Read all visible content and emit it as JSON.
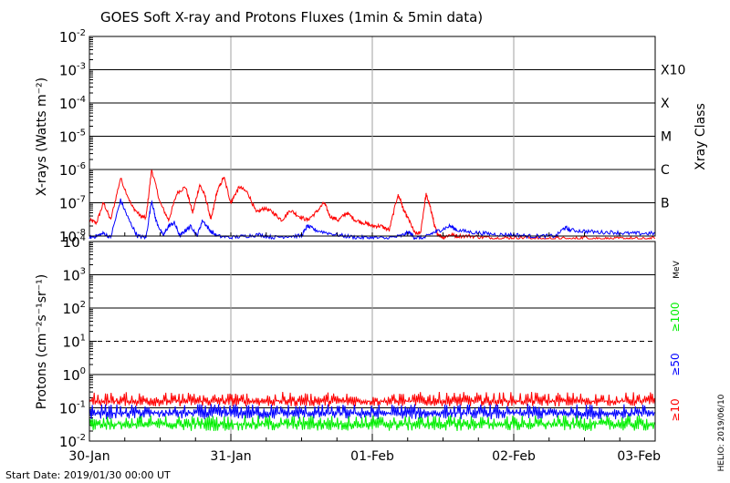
{
  "title": "GOES Soft X-ray and Protons Fluxes   (1min & 5min data)",
  "start_date": "Start Date: 2019/01/30 00:00 UT",
  "helio_stamp": "HELIO: 2019/06/10",
  "colors": {
    "red": "#ff0000",
    "blue": "#0000ff",
    "green": "#00ee00",
    "grid": "#a0a0a0",
    "axis": "#000000"
  },
  "chart_data": [
    {
      "type": "line",
      "panel": "xray",
      "ylabel": "X-rays (Watts m⁻²)",
      "y_scale": "log",
      "ylim": [
        1e-08,
        0.01
      ],
      "y_ticks": [
        {
          "base": "10",
          "exp": "-8"
        },
        {
          "base": "10",
          "exp": "-7"
        },
        {
          "base": "10",
          "exp": "-6"
        },
        {
          "base": "10",
          "exp": "-5"
        },
        {
          "base": "10",
          "exp": "-4"
        },
        {
          "base": "10",
          "exp": "-3"
        },
        {
          "base": "10",
          "exp": "-2"
        }
      ],
      "right_axis_label": "Xray Class",
      "right_ticks": [
        {
          "label": "B",
          "exp": -7
        },
        {
          "label": "C",
          "exp": -6
        },
        {
          "label": "M",
          "exp": -5
        },
        {
          "label": "X",
          "exp": -4
        },
        {
          "label": "X10",
          "exp": -3
        }
      ],
      "x_ticks": [
        "30-Jan",
        "31-Jan",
        "01-Feb",
        "02-Feb",
        "03-Feb"
      ],
      "xlim_days": [
        0,
        4
      ],
      "grid": true,
      "series": [
        {
          "color": "#ff0000",
          "x": [
            0.0,
            0.05,
            0.1,
            0.15,
            0.22,
            0.3,
            0.36,
            0.4,
            0.44,
            0.5,
            0.56,
            0.62,
            0.68,
            0.73,
            0.78,
            0.82,
            0.86,
            0.9,
            0.95,
            1.0,
            1.02,
            1.06,
            1.12,
            1.18,
            1.24,
            1.3,
            1.36,
            1.42,
            1.48,
            1.54,
            1.6,
            1.66,
            1.7,
            1.76,
            1.82,
            1.88,
            1.94,
            2.0,
            2.06,
            2.12,
            2.18,
            2.2,
            2.22,
            2.26,
            2.3,
            2.34,
            2.38,
            2.4,
            2.42,
            2.44,
            2.46,
            2.5,
            2.55,
            2.6,
            2.7,
            2.8,
            2.9,
            3.0,
            3.1,
            3.2,
            3.3,
            3.4,
            3.5,
            3.6,
            3.7,
            3.8,
            3.9,
            4.0
          ],
          "y": [
            3e-08,
            2.5e-08,
            1e-07,
            3e-08,
            5.5e-07,
            8e-08,
            4e-08,
            3.5e-08,
            1e-06,
            1e-07,
            3e-08,
            2e-07,
            3e-07,
            5e-08,
            3.5e-07,
            1.5e-07,
            3e-08,
            2e-07,
            6e-07,
            1e-07,
            1.5e-07,
            3e-07,
            2e-07,
            5e-08,
            7e-08,
            5e-08,
            3e-08,
            6e-08,
            4e-08,
            3e-08,
            5e-08,
            1e-07,
            4e-08,
            3e-08,
            5e-08,
            3e-08,
            2.5e-08,
            2e-08,
            2e-08,
            1.5e-08,
            1.7e-07,
            1.2e-07,
            6e-08,
            3e-08,
            1.2e-08,
            1.2e-08,
            1.8e-07,
            1e-07,
            5e-08,
            2e-08,
            1.2e-08,
            9e-09,
            1.1e-08,
            1e-08,
            1e-08,
            9e-09,
            8.5e-09,
            9e-09,
            9e-09,
            8e-09,
            8.5e-09,
            8e-09,
            9e-09,
            8.5e-09,
            8e-09,
            8.5e-09,
            8e-09,
            8.5e-09
          ]
        },
        {
          "color": "#0000ff",
          "x": [
            0.0,
            0.05,
            0.1,
            0.15,
            0.22,
            0.28,
            0.34,
            0.4,
            0.44,
            0.47,
            0.52,
            0.56,
            0.6,
            0.64,
            0.68,
            0.72,
            0.76,
            0.8,
            0.85,
            0.9,
            1.0,
            1.1,
            1.2,
            1.3,
            1.4,
            1.5,
            1.54,
            1.6,
            1.7,
            1.8,
            1.9,
            2.0,
            2.1,
            2.2,
            2.26,
            2.3,
            2.36,
            2.42,
            2.48,
            2.55,
            2.6,
            2.7,
            2.8,
            2.9,
            3.0,
            3.1,
            3.2,
            3.3,
            3.36,
            3.4,
            3.5,
            3.6,
            3.7,
            3.8,
            3.9,
            4.0
          ],
          "y": [
            9e-09,
            1e-08,
            1.2e-08,
            9e-09,
            1.2e-07,
            3e-08,
            1e-08,
            9e-09,
            1.2e-07,
            3e-08,
            1e-08,
            2e-08,
            2.5e-08,
            1e-08,
            1.5e-08,
            2e-08,
            1e-08,
            3e-08,
            1.5e-08,
            1e-08,
            9e-09,
            1e-08,
            1.1e-08,
            9e-09,
            1e-08,
            1e-08,
            2e-08,
            1.5e-08,
            1.2e-08,
            1e-08,
            9e-09,
            9e-09,
            8.5e-09,
            1e-08,
            1.3e-08,
            9e-09,
            8.5e-09,
            1.2e-08,
            1.5e-08,
            2e-08,
            1.5e-08,
            1.3e-08,
            1.2e-08,
            1.1e-08,
            1.1e-08,
            1e-08,
            1e-08,
            1e-08,
            1.8e-08,
            1.5e-08,
            1.4e-08,
            1.3e-08,
            1.3e-08,
            1.2e-08,
            1.2e-08,
            1.2e-08
          ]
        }
      ]
    },
    {
      "type": "line",
      "panel": "protons",
      "ylabel": "Protons (cm⁻²s⁻¹sr⁻¹)",
      "y_scale": "log",
      "ylim": [
        0.01,
        10000
      ],
      "y_ticks": [
        {
          "base": "10",
          "exp": "-2"
        },
        {
          "base": "10",
          "exp": "-1"
        },
        {
          "base": "10",
          "exp": "0"
        },
        {
          "base": "10",
          "exp": "1"
        },
        {
          "base": "10",
          "exp": "2"
        },
        {
          "base": "10",
          "exp": "3"
        },
        {
          "base": "10",
          "exp": "4"
        }
      ],
      "reference_line": 10,
      "x_ticks": [
        "30-Jan",
        "31-Jan",
        "01-Feb",
        "02-Feb",
        "03-Feb"
      ],
      "xlim_days": [
        0,
        4
      ],
      "grid": true,
      "right_labels": [
        {
          "text": "MeV",
          "color": "#000000"
        },
        {
          "text": "≥100",
          "color": "#00ee00"
        },
        {
          "text": "≥50",
          "color": "#0000ff"
        },
        {
          "text": "≥10",
          "color": "#ff0000"
        }
      ],
      "series": [
        {
          "name": "≥10",
          "color": "#ff0000",
          "level": 0.16,
          "low": 0.11,
          "high": 0.3
        },
        {
          "name": "≥50",
          "color": "#0000ff",
          "level": 0.07,
          "low": 0.045,
          "high": 0.13
        },
        {
          "name": "≥100",
          "color": "#00ee00",
          "level": 0.033,
          "low": 0.02,
          "high": 0.06
        }
      ]
    }
  ]
}
